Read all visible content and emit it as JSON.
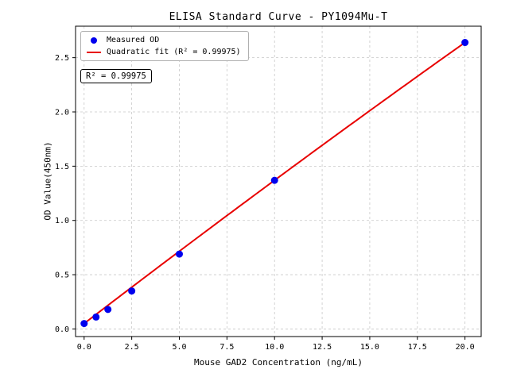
{
  "chart_data": {
    "type": "scatter",
    "title": "ELISA Standard Curve - PY1094Mu-T",
    "xlabel": "Mouse GAD2 Concentration (ng/mL)",
    "ylabel": "OD Value(450nm)",
    "xlim": [
      -0.45,
      20.85
    ],
    "ylim": [
      -0.07,
      2.79
    ],
    "x_tick_values": [
      0,
      2.5,
      5,
      7.5,
      10,
      12.5,
      15,
      17.5,
      20
    ],
    "x_tick_labels": [
      "0.0",
      "2.5",
      "5.0",
      "7.5",
      "10.0",
      "12.5",
      "15.0",
      "17.5",
      "20.0"
    ],
    "y_tick_values": [
      0,
      0.5,
      1,
      1.5,
      2,
      2.5
    ],
    "y_tick_labels": [
      "0.0",
      "0.5",
      "1.0",
      "1.5",
      "2.0",
      "2.5"
    ],
    "grid": true,
    "grid_style": "dashed",
    "legend_position": "upper left",
    "annotation": "R² = 0.99975",
    "colors": {
      "scatter": "#0000ee",
      "fit_line": "#e80000",
      "grid": "#c8c8c8",
      "spine": "#000000",
      "legend_border": "#b0b0b0"
    },
    "series": [
      {
        "name": "Measured OD",
        "type": "scatter",
        "color": "#0000ee",
        "x": [
          0,
          0.625,
          1.25,
          2.5,
          5,
          10,
          20
        ],
        "y": [
          0.05,
          0.11,
          0.18,
          0.35,
          0.69,
          1.37,
          2.64
        ]
      },
      {
        "name": "Quadratic fit (R² = 0.99975)",
        "type": "line",
        "color": "#e80000",
        "x_range": [
          0,
          20
        ],
        "fit_coefficients": {
          "a": -0.00025,
          "b": 0.1345,
          "c": 0.05
        },
        "r_squared": 0.99975
      }
    ]
  }
}
